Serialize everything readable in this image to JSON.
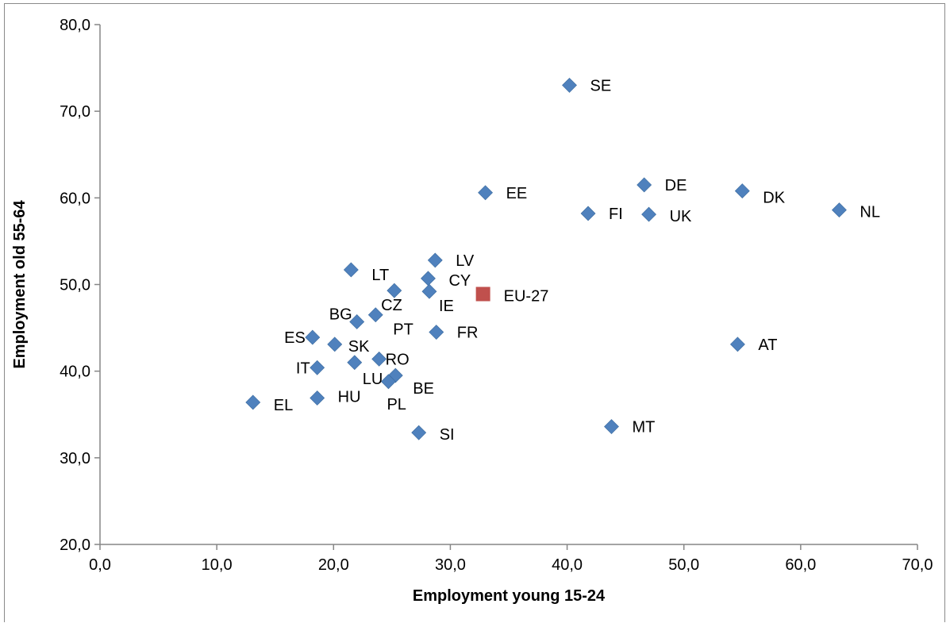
{
  "chart_data": {
    "type": "scatter",
    "title": "",
    "xlabel": "Employment young 15-24",
    "ylabel": "Employment old 55-64",
    "xlim": [
      0,
      70
    ],
    "ylim": [
      20,
      80
    ],
    "x_ticks": [
      0,
      10,
      20,
      30,
      40,
      50,
      60,
      70
    ],
    "y_ticks": [
      20,
      30,
      40,
      50,
      60,
      70,
      80
    ],
    "x_tick_labels": [
      "0,0",
      "10,0",
      "20,0",
      "30,0",
      "40,0",
      "50,0",
      "60,0",
      "70,0"
    ],
    "y_tick_labels": [
      "20,0",
      "30,0",
      "40,0",
      "50,0",
      "60,0",
      "70,0",
      "80,0"
    ],
    "grid": false,
    "legend": "none",
    "colors": {
      "countries": "#4f81bd",
      "eu27": "#c0504d",
      "axis": "#868686"
    },
    "series": [
      {
        "marker": "diamond",
        "color": "#4f81bd",
        "points": [
          {
            "label": "SE",
            "x": 40.2,
            "y": 73.0
          },
          {
            "label": "DE",
            "x": 46.6,
            "y": 61.5
          },
          {
            "label": "DK",
            "x": 55.0,
            "y": 60.8
          },
          {
            "label": "EE",
            "x": 33.0,
            "y": 60.6
          },
          {
            "label": "NL",
            "x": 63.3,
            "y": 58.6
          },
          {
            "label": "FI",
            "x": 41.8,
            "y": 58.2
          },
          {
            "label": "UK",
            "x": 47.0,
            "y": 58.1
          },
          {
            "label": "LV",
            "x": 28.7,
            "y": 52.8
          },
          {
            "label": "LT",
            "x": 21.5,
            "y": 51.7
          },
          {
            "label": "CY",
            "x": 28.1,
            "y": 50.7
          },
          {
            "label": "CZ",
            "x": 25.2,
            "y": 49.3
          },
          {
            "label": "IE",
            "x": 28.2,
            "y": 49.2
          },
          {
            "label": "PT",
            "x": 23.6,
            "y": 46.5
          },
          {
            "label": "BG",
            "x": 22.0,
            "y": 45.7
          },
          {
            "label": "FR",
            "x": 28.8,
            "y": 44.5
          },
          {
            "label": "ES",
            "x": 18.2,
            "y": 43.9
          },
          {
            "label": "SK",
            "x": 20.1,
            "y": 43.1
          },
          {
            "label": "AT",
            "x": 54.6,
            "y": 43.1
          },
          {
            "label": "RO",
            "x": 23.9,
            "y": 41.4
          },
          {
            "label": "LU",
            "x": 21.8,
            "y": 41.0
          },
          {
            "label": "IT",
            "x": 18.6,
            "y": 40.4
          },
          {
            "label": "BE",
            "x": 25.3,
            "y": 39.5
          },
          {
            "label": "PL",
            "x": 24.7,
            "y": 38.8
          },
          {
            "label": "HU",
            "x": 18.6,
            "y": 36.9
          },
          {
            "label": "EL",
            "x": 13.1,
            "y": 36.4
          },
          {
            "label": "MT",
            "x": 43.8,
            "y": 33.6
          },
          {
            "label": "SI",
            "x": 27.3,
            "y": 32.9
          }
        ]
      },
      {
        "marker": "square",
        "color": "#c0504d",
        "points": [
          {
            "label": "EU-27",
            "x": 32.8,
            "y": 48.9
          }
        ]
      }
    ]
  }
}
